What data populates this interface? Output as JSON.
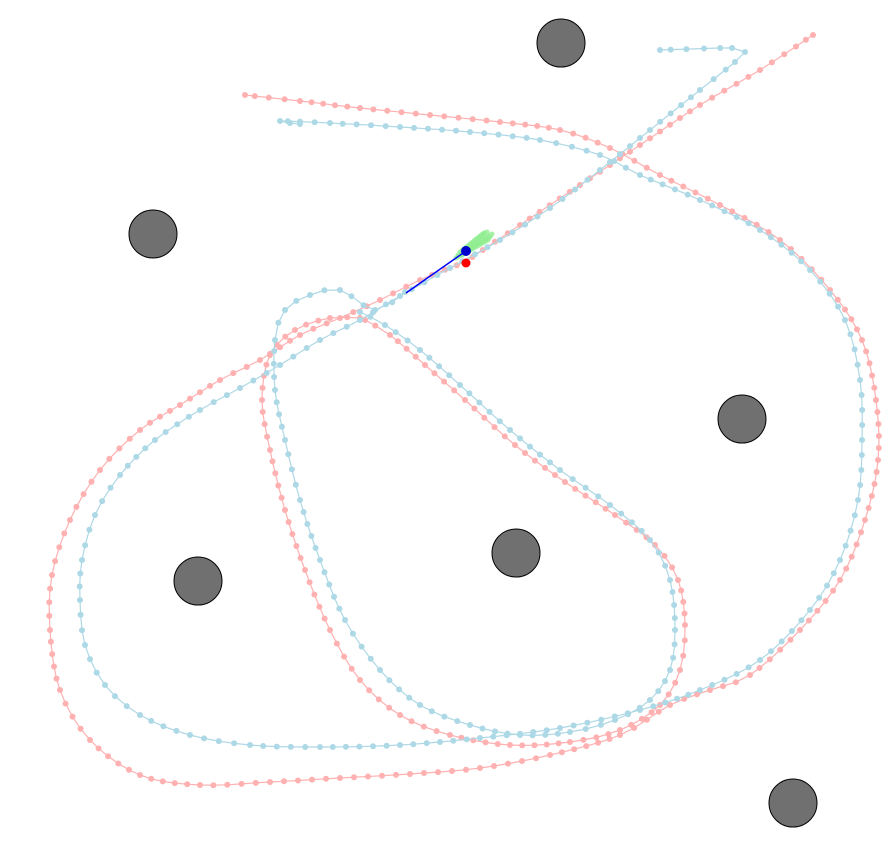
{
  "colors": {
    "background": "#ffffff",
    "obstacle_fill": "#707070",
    "obstacle_stroke": "#000000",
    "trajectory_a": "#add8e6",
    "trajectory_b": "#ffb0b0",
    "prediction_fan": "#90ee90",
    "agent_heading": "#0000ff",
    "agent_marker": "#0000cc",
    "target_marker": "#ff0000"
  },
  "legend": [],
  "obstacles": [
    {
      "name": "obstacle-top-center"
    },
    {
      "name": "obstacle-left-upper"
    },
    {
      "name": "obstacle-right-middle"
    },
    {
      "name": "obstacle-center"
    },
    {
      "name": "obstacle-left-lower"
    },
    {
      "name": "obstacle-bottom-right"
    }
  ],
  "trajectories": [
    {
      "name": "trajectory-blue",
      "color_key": "trajectory_a"
    },
    {
      "name": "trajectory-red",
      "color_key": "trajectory_b"
    }
  ],
  "agent": {
    "heading_color_key": "agent_heading",
    "marker_color_key": "agent_marker",
    "target_color_key": "target_marker",
    "prediction_color_key": "prediction_fan"
  }
}
